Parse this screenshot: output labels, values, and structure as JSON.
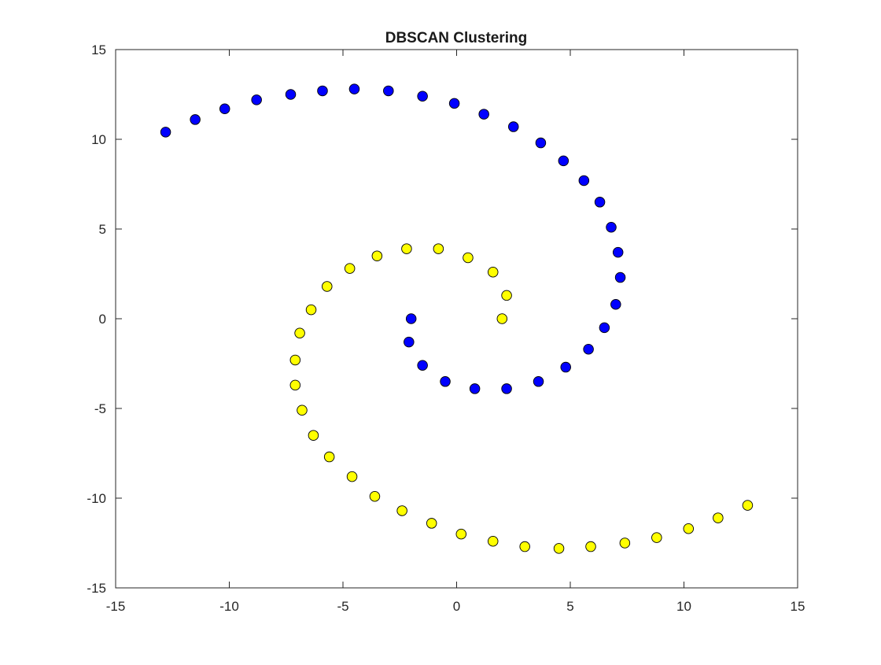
{
  "chart_data": {
    "type": "scatter",
    "title": "DBSCAN Clustering",
    "xlabel": "",
    "ylabel": "",
    "xlim": [
      -15,
      15
    ],
    "ylim": [
      -15,
      15
    ],
    "x_ticks": [
      "-15",
      "-10",
      "-5",
      "0",
      "5",
      "10",
      "15"
    ],
    "y_ticks": [
      "15",
      "10",
      "5",
      "0",
      "-5",
      "-10",
      "-15"
    ],
    "x_tick_values": [
      -15,
      -10,
      -5,
      0,
      5,
      10,
      15
    ],
    "y_tick_values": [
      15,
      10,
      5,
      0,
      -5,
      -10,
      -15
    ],
    "grid": false,
    "box": true,
    "series": [
      {
        "color": "#0000ff",
        "marker": "circle",
        "points": [
          [
            -2.0,
            0.0
          ],
          [
            -2.1,
            -1.3
          ],
          [
            -1.5,
            -2.6
          ],
          [
            -0.5,
            -3.5
          ],
          [
            0.8,
            -3.9
          ],
          [
            2.2,
            -3.9
          ],
          [
            3.6,
            -3.5
          ],
          [
            4.8,
            -2.7
          ],
          [
            5.8,
            -1.7
          ],
          [
            6.5,
            -0.5
          ],
          [
            7.0,
            0.8
          ],
          [
            7.2,
            2.3
          ],
          [
            7.1,
            3.7
          ],
          [
            6.8,
            5.1
          ],
          [
            6.3,
            6.5
          ],
          [
            5.6,
            7.7
          ],
          [
            4.7,
            8.8
          ],
          [
            3.7,
            9.8
          ],
          [
            2.5,
            10.7
          ],
          [
            1.2,
            11.4
          ],
          [
            -0.1,
            12.0
          ],
          [
            -1.5,
            12.4
          ],
          [
            -3.0,
            12.7
          ],
          [
            -4.5,
            12.8
          ],
          [
            -5.9,
            12.7
          ],
          [
            -7.3,
            12.5
          ],
          [
            -8.8,
            12.2
          ],
          [
            -10.2,
            11.7
          ],
          [
            -11.5,
            11.1
          ],
          [
            -12.8,
            10.4
          ]
        ]
      },
      {
        "color": "#ffff00",
        "marker": "circle",
        "points": [
          [
            2.0,
            0.0
          ],
          [
            2.2,
            1.3
          ],
          [
            1.6,
            2.6
          ],
          [
            0.5,
            3.4
          ],
          [
            -0.8,
            3.9
          ],
          [
            -2.2,
            3.9
          ],
          [
            -3.5,
            3.5
          ],
          [
            -4.7,
            2.8
          ],
          [
            -5.7,
            1.8
          ],
          [
            -6.4,
            0.5
          ],
          [
            -6.9,
            -0.8
          ],
          [
            -7.1,
            -2.3
          ],
          [
            -7.1,
            -3.7
          ],
          [
            -6.8,
            -5.1
          ],
          [
            -6.3,
            -6.5
          ],
          [
            -5.6,
            -7.7
          ],
          [
            -4.6,
            -8.8
          ],
          [
            -3.6,
            -9.9
          ],
          [
            -2.4,
            -10.7
          ],
          [
            -1.1,
            -11.4
          ],
          [
            0.2,
            -12.0
          ],
          [
            1.6,
            -12.4
          ],
          [
            3.0,
            -12.7
          ],
          [
            4.5,
            -12.8
          ],
          [
            5.9,
            -12.7
          ],
          [
            7.4,
            -12.5
          ],
          [
            8.8,
            -12.2
          ],
          [
            10.2,
            -11.7
          ],
          [
            11.5,
            -11.1
          ],
          [
            12.8,
            -10.4
          ]
        ]
      }
    ]
  }
}
